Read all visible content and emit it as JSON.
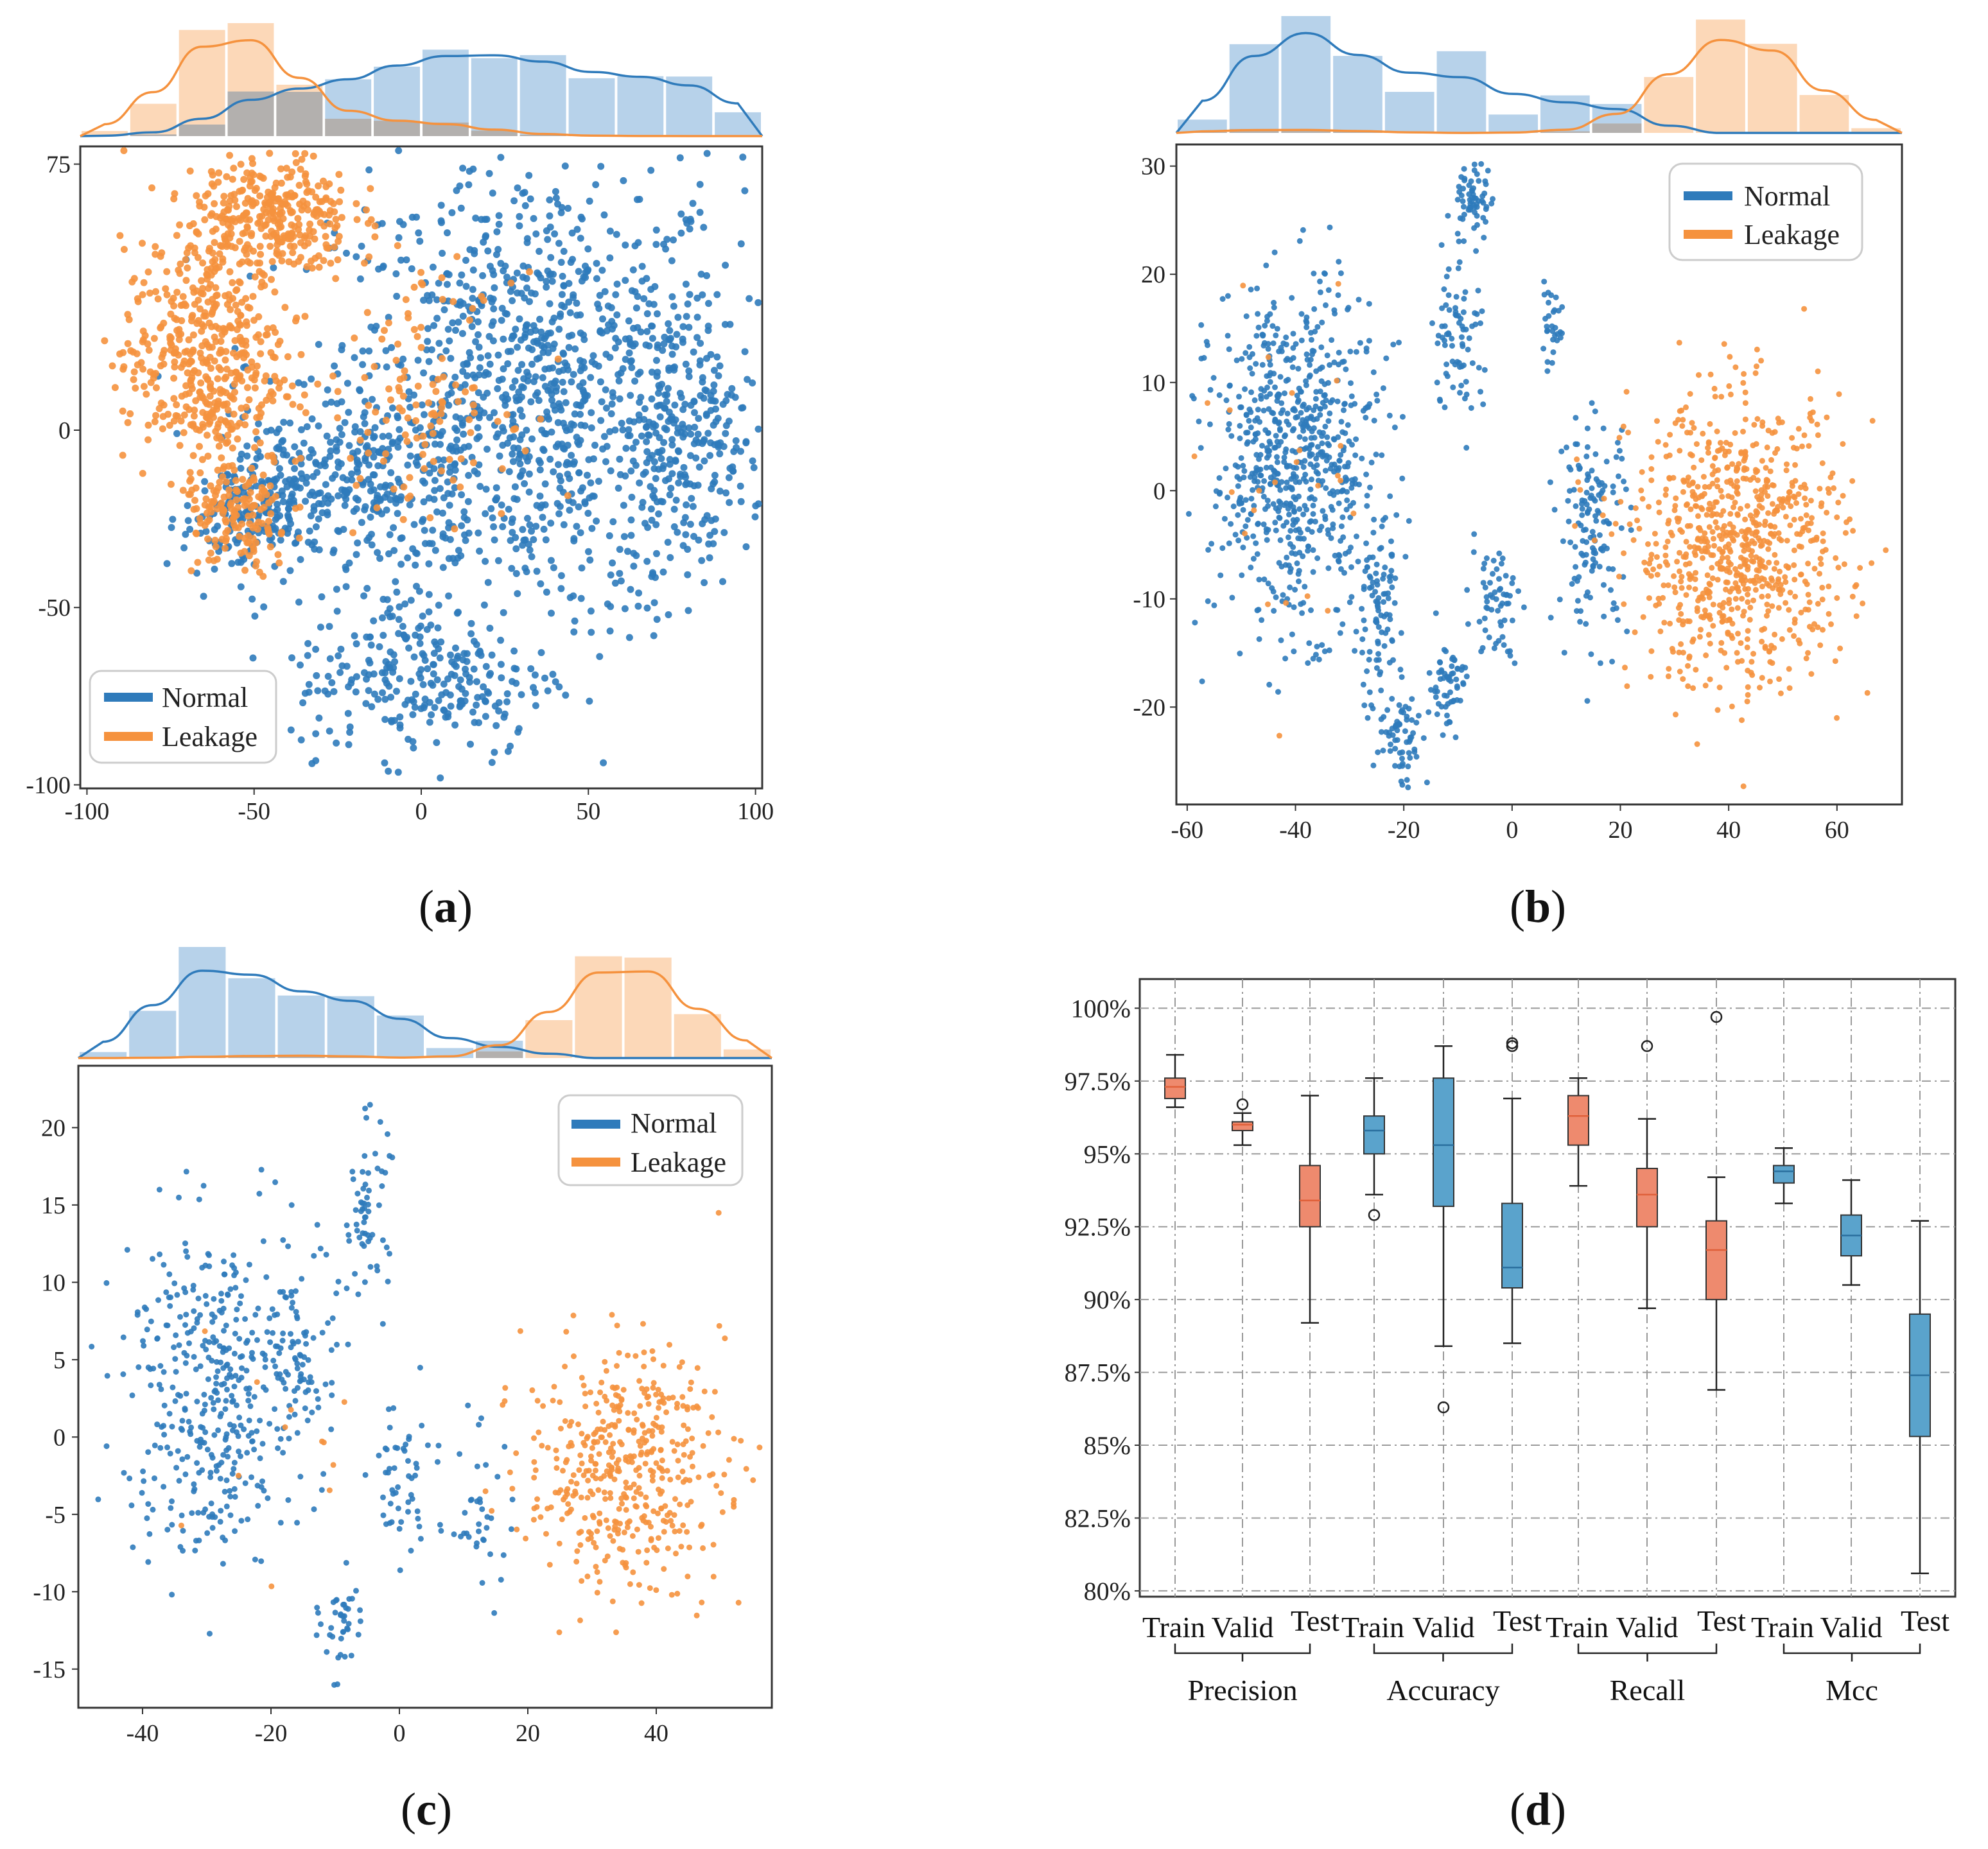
{
  "colors": {
    "normal": "#2f7bbb",
    "leakage": "#f5923e",
    "normal_hist": "#b7d2ea",
    "leakage_hist": "#fbd1ab",
    "overlap_hist": "#b3b0ae",
    "box_blue": "#5aa3cc",
    "box_orange": "#ee8a6e",
    "median": "#e0603a",
    "grid": "#9a9a9a",
    "axis": "#333333"
  },
  "legend": {
    "normal": "Normal",
    "leakage": "Leakage"
  },
  "captions": {
    "a": {
      "open": "(",
      "letter": "a",
      "close": ")"
    },
    "b": {
      "open": "(",
      "letter": "b",
      "close": ")"
    },
    "c": {
      "open": "(",
      "letter": "c",
      "close": ")"
    },
    "d": {
      "open": "(",
      "letter": "d",
      "close": ")"
    }
  },
  "chart_data": [
    {
      "id": "a",
      "type": "scatter",
      "title": "",
      "xlabel": "",
      "ylabel": "",
      "xlim": [
        -102,
        102
      ],
      "ylim": [
        -101,
        80
      ],
      "xticks": [
        -100,
        -50,
        0,
        50,
        100
      ],
      "yticks": [
        75,
        0,
        -50,
        -100
      ],
      "legend_position": "bottom-left",
      "marginal_histogram": "top",
      "series": [
        {
          "name": "Normal",
          "clusters": [
            [
              35,
              10,
              55,
              60,
              1100
            ],
            [
              -10,
              -15,
              25,
              25,
              200
            ],
            [
              -40,
              -15,
              20,
              20,
              150
            ],
            [
              -55,
              -25,
              15,
              15,
              120
            ],
            [
              0,
              -70,
              35,
              20,
              250
            ],
            [
              80,
              0,
              18,
              35,
              200
            ]
          ]
        },
        {
          "name": "Leakage",
          "clusters": [
            [
              -65,
              20,
              22,
              30,
              450
            ],
            [
              -45,
              60,
              22,
              17,
              350
            ],
            [
              -55,
              -25,
              15,
              15,
              150
            ],
            [
              0,
              10,
              25,
              30,
              120
            ]
          ]
        }
      ]
    },
    {
      "id": "b",
      "type": "scatter",
      "title": "",
      "xlabel": "",
      "ylabel": "",
      "xlim": [
        -62,
        72
      ],
      "ylim": [
        -29,
        32
      ],
      "xticks": [
        -60,
        -40,
        -20,
        0,
        20,
        40,
        60
      ],
      "yticks": [
        30,
        20,
        10,
        0,
        -10,
        -20
      ],
      "legend_position": "top-right",
      "marginal_histogram": "top",
      "series": [
        {
          "name": "Normal",
          "clusters": [
            [
              -40,
              3,
              14,
              14,
              700
            ],
            [
              -10,
              15,
              4,
              8,
              80
            ],
            [
              -7,
              27,
              3,
              3,
              60
            ],
            [
              -3,
              -10,
              4,
              5,
              60
            ],
            [
              -12,
              -18,
              3,
              4,
              60
            ],
            [
              -25,
              -12,
              4,
              8,
              100
            ],
            [
              7,
              15,
              2,
              3,
              30
            ],
            [
              15,
              -3,
              6,
              9,
              140
            ],
            [
              -20,
              -23,
              4,
              4,
              60
            ]
          ]
        },
        {
          "name": "Leakage",
          "clusters": [
            [
              42,
              -5,
              18,
              12,
              800
            ],
            [
              -40,
              0,
              16,
              14,
              25
            ]
          ]
        }
      ]
    },
    {
      "id": "c",
      "type": "scatter",
      "title": "",
      "xlabel": "",
      "ylabel": "",
      "xlim": [
        -50,
        58
      ],
      "ylim": [
        -17.5,
        24
      ],
      "xticks": [
        -40,
        -20,
        0,
        20,
        40
      ],
      "yticks": [
        20,
        15,
        10,
        5,
        0,
        -5,
        -10,
        -15
      ],
      "legend_position": "top-right",
      "marginal_histogram": "top",
      "series": [
        {
          "name": "Normal",
          "clusters": [
            [
              -30,
              3,
              12,
              10,
              380
            ],
            [
              -15,
              5,
              5,
              7,
              90
            ],
            [
              -5,
              15,
              3,
              5,
              60
            ],
            [
              -9,
              -12,
              3,
              3,
              40
            ],
            [
              0,
              -3,
              4,
              5,
              50
            ],
            [
              12,
              -5,
              6,
              5,
              40
            ]
          ]
        },
        {
          "name": "Leakage",
          "clusters": [
            [
              35,
              -2,
              14,
              7,
              450
            ],
            [
              -20,
              0,
              12,
              8,
              12
            ]
          ]
        }
      ]
    },
    {
      "id": "d",
      "type": "box",
      "title": "",
      "xlabel": "",
      "ylabel": "",
      "ylim": [
        79.8,
        101.0
      ],
      "yticks": [
        "100%",
        "97.5%",
        "95%",
        "92.5%",
        "90%",
        "87.5%",
        "85%",
        "82.5%",
        "80%"
      ],
      "ytick_values": [
        100,
        97.5,
        95,
        92.5,
        90,
        87.5,
        85,
        82.5,
        80
      ],
      "categories": [
        "Train",
        "Valid",
        "Test",
        "Train",
        "Valid",
        "Test",
        "Train",
        "Valid",
        "Test",
        "Train",
        "Valid",
        "Test"
      ],
      "groups": [
        "Precision",
        "Accuracy",
        "Recall",
        "Mcc"
      ],
      "boxes": [
        {
          "group": "Precision",
          "split": "Train",
          "color": "orange",
          "whislo": 96.6,
          "q1": 96.9,
          "med": 97.3,
          "q3": 97.6,
          "whishi": 98.4,
          "fliers": []
        },
        {
          "group": "Precision",
          "split": "Valid",
          "color": "orange",
          "whislo": 95.3,
          "q1": 95.8,
          "med": 96.0,
          "q3": 96.1,
          "whishi": 96.4,
          "fliers": [
            96.7
          ]
        },
        {
          "group": "Precision",
          "split": "Test",
          "color": "orange",
          "whislo": 89.2,
          "q1": 92.5,
          "med": 93.4,
          "q3": 94.6,
          "whishi": 97.0,
          "fliers": []
        },
        {
          "group": "Accuracy",
          "split": "Train",
          "color": "blue",
          "whislo": 93.6,
          "q1": 95.0,
          "med": 95.8,
          "q3": 96.3,
          "whishi": 97.6,
          "fliers": [
            92.9
          ]
        },
        {
          "group": "Accuracy",
          "split": "Valid",
          "color": "blue",
          "whislo": 88.4,
          "q1": 93.2,
          "med": 95.3,
          "q3": 97.6,
          "whishi": 98.7,
          "fliers": [
            86.3
          ]
        },
        {
          "group": "Accuracy",
          "split": "Test",
          "color": "blue",
          "whislo": 88.5,
          "q1": 90.4,
          "med": 91.1,
          "q3": 93.3,
          "whishi": 96.9,
          "fliers": [
            98.7,
            98.8
          ]
        },
        {
          "group": "Recall",
          "split": "Train",
          "color": "orange",
          "whislo": 93.9,
          "q1": 95.3,
          "med": 96.3,
          "q3": 97.0,
          "whishi": 97.6,
          "fliers": []
        },
        {
          "group": "Recall",
          "split": "Valid",
          "color": "orange",
          "whislo": 89.7,
          "q1": 92.5,
          "med": 93.6,
          "q3": 94.5,
          "whishi": 96.2,
          "fliers": [
            98.7
          ]
        },
        {
          "group": "Recall",
          "split": "Test",
          "color": "orange",
          "whislo": 86.9,
          "q1": 90.0,
          "med": 91.7,
          "q3": 92.7,
          "whishi": 94.2,
          "fliers": [
            99.7
          ]
        },
        {
          "group": "Mcc",
          "split": "Train",
          "color": "blue",
          "whislo": 93.3,
          "q1": 94.0,
          "med": 94.4,
          "q3": 94.6,
          "whishi": 95.2,
          "fliers": []
        },
        {
          "group": "Mcc",
          "split": "Valid",
          "color": "blue",
          "whislo": 90.5,
          "q1": 91.5,
          "med": 92.2,
          "q3": 92.9,
          "whishi": 94.1,
          "fliers": []
        },
        {
          "group": "Mcc",
          "split": "Test",
          "color": "blue",
          "whislo": 80.6,
          "q1": 85.3,
          "med": 87.4,
          "q3": 89.5,
          "whishi": 92.7,
          "fliers": []
        }
      ]
    }
  ]
}
